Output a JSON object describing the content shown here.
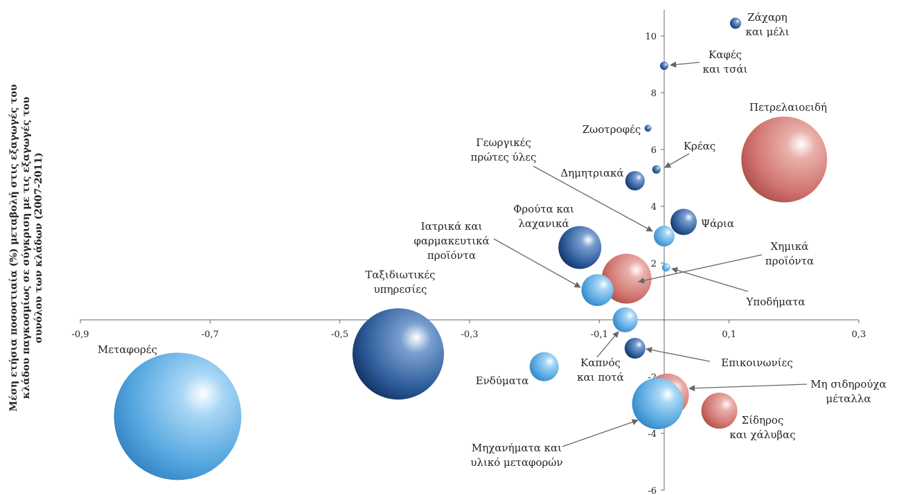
{
  "chart_data": {
    "type": "scatter",
    "title": "",
    "xlabel": "",
    "ylabel": [
      "Μέση ετήσια ποσοστιαία (%) μεταβολή στις εξαγωγές του",
      "κλάδου παγκοσμίως σε σύγκριση με τις εξαγωγές του",
      "συνόλου των κλάδων  (2007-2011)"
    ],
    "xlim": [
      -0.9,
      0.3
    ],
    "ylim": [
      -6,
      11
    ],
    "xticks": [
      -0.9,
      -0.7,
      -0.5,
      -0.3,
      -0.1,
      0.1,
      0.3
    ],
    "yticks": [
      -6,
      -4,
      -2,
      2,
      4,
      6,
      8,
      10
    ],
    "xtick_labels": [
      "-0,9",
      "-0,7",
      "-0,5",
      "-0,3",
      "-0,1",
      "0,1",
      "0,3"
    ],
    "ytick_labels": [
      "-6",
      "-4",
      "-2",
      "2",
      "4",
      "6",
      "8",
      "10"
    ],
    "grid": false,
    "points": [
      {
        "label": [
          "Ζάχαρη",
          "και μέλι"
        ],
        "x": 0.11,
        "y": 10.45,
        "size": 8,
        "color": "#2f5f9c"
      },
      {
        "label": [
          "Καφές",
          "και τσάι"
        ],
        "x": 0.0,
        "y": 8.95,
        "size": 6,
        "color": "#2f5f9c"
      },
      {
        "label": [
          "Ζωοτροφές"
        ],
        "x": -0.025,
        "y": 6.75,
        "size": 5,
        "color": "#2f5f9c"
      },
      {
        "label": [
          "Κρέας"
        ],
        "x": -0.012,
        "y": 5.3,
        "size": 6,
        "color": "#2f5f9c"
      },
      {
        "label": [
          "Πετρελαιοειδή"
        ],
        "x": 0.185,
        "y": 5.65,
        "size": 62,
        "color": "#cd6b67"
      },
      {
        "label": [
          "Δημητριακά"
        ],
        "x": -0.045,
        "y": 4.9,
        "size": 14,
        "color": "#2f5f9c"
      },
      {
        "label": [
          "Ψάρια"
        ],
        "x": 0.03,
        "y": 3.45,
        "size": 19,
        "color": "#2f5f9c"
      },
      {
        "label": [
          "Γεωργικές",
          "πρώτες ύλες"
        ],
        "x": 0.0,
        "y": 2.95,
        "size": 15,
        "color": "#4da1db"
      },
      {
        "label": [
          "Φρούτα και",
          "λαχανικά"
        ],
        "x": -0.13,
        "y": 2.55,
        "size": 31,
        "color": "#2f5f9c"
      },
      {
        "label": [
          "Υποδήματα"
        ],
        "x": 0.003,
        "y": 1.85,
        "size": 6,
        "color": "#4da1db"
      },
      {
        "label": [
          "Χημικά",
          "προϊόντα"
        ],
        "x": -0.058,
        "y": 1.45,
        "size": 36,
        "color": "#cd6b67"
      },
      {
        "label": [
          "Ιατρικά και",
          "φαρμακευτικά",
          "προϊόντα"
        ],
        "x": -0.103,
        "y": 1.05,
        "size": 23,
        "color": "#4da1db"
      },
      {
        "label": [
          "Ταξιδιωτικές",
          "υπηρεσίες"
        ],
        "x": -0.41,
        "y": -1.2,
        "size": 66,
        "color": "#2f5f9c"
      },
      {
        "label": [
          "Μεταφορές"
        ],
        "x": -0.75,
        "y": -3.4,
        "size": 92,
        "color": "#4da1db"
      },
      {
        "label": [
          "Καπνός",
          "και ποτά"
        ],
        "x": -0.06,
        "y": 0.0,
        "size": 18,
        "color": "#4da1db"
      },
      {
        "label": [
          "Επικοινωνίες"
        ],
        "x": -0.045,
        "y": -1.0,
        "size": 15,
        "color": "#2f5f9c"
      },
      {
        "label": [
          "Ενδύματα"
        ],
        "x": -0.185,
        "y": -1.65,
        "size": 21,
        "color": "#4da1db"
      },
      {
        "label": [
          "Μη σιδηρούχα",
          "μέταλλα"
        ],
        "x": 0.005,
        "y": -2.65,
        "size": 31,
        "color": "#cd6b67"
      },
      {
        "label": [
          "Μηχανήματα και",
          "υλικό μεταφορών"
        ],
        "x": -0.01,
        "y": -2.95,
        "size": 37,
        "color": "#4da1db"
      },
      {
        "label": [
          "Σίδηρος",
          "και χάλυβας"
        ],
        "x": 0.085,
        "y": -3.2,
        "size": 26,
        "color": "#cd6b67"
      }
    ]
  }
}
